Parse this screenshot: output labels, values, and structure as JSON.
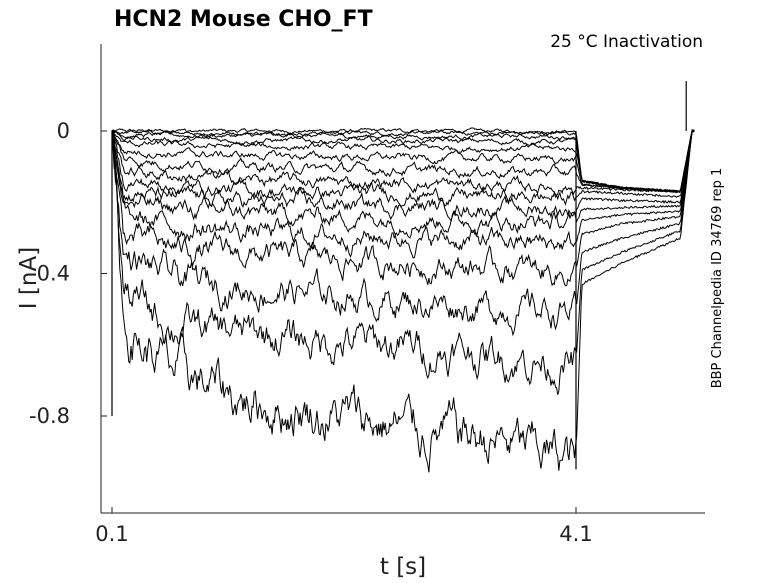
{
  "chart_data": {
    "type": "line",
    "title": "HCN2  Mouse  CHO_FT",
    "subtitle": "25 °C  Inactivation",
    "side_label": "BBP Channelpedia ID 34769 rep 1",
    "xlabel": "t [s]",
    "ylabel": "I [nA]",
    "x_ticks": [
      {
        "value": 0.1,
        "label": "0.1"
      },
      {
        "value": 4.1,
        "label": "4.1"
      }
    ],
    "y_ticks": [
      {
        "value": 0,
        "label": "0"
      },
      {
        "value": -0.4,
        "label": "-0.4"
      },
      {
        "value": -0.8,
        "label": "-0.8"
      }
    ],
    "xlim": [
      0,
      5.2
    ],
    "ylim": [
      -1.1,
      0.25
    ],
    "grid": false,
    "line_color": "#000000",
    "sweep_x": [
      0,
      0.1,
      0.2,
      0.6,
      1.2,
      2.0,
      2.8,
      3.4,
      3.8,
      4.1,
      4.15,
      4.5,
      5.0,
      5.1,
      5.2
    ],
    "series": [
      {
        "values": [
          0.0,
          0.0,
          0.0,
          0.0,
          0.0,
          0.0,
          0.0,
          0.0,
          0.0,
          0.0,
          -0.14,
          -0.16,
          -0.17,
          0.0,
          0.0
        ]
      },
      {
        "values": [
          0.0,
          0.0,
          -0.004,
          -0.005,
          -0.005,
          -0.005,
          -0.006,
          -0.006,
          -0.006,
          -0.006,
          -0.14,
          -0.16,
          -0.17,
          0.0,
          0.0
        ]
      },
      {
        "values": [
          0.0,
          0.0,
          -0.01,
          -0.012,
          -0.013,
          -0.014,
          -0.015,
          -0.015,
          -0.015,
          -0.016,
          -0.14,
          -0.16,
          -0.17,
          0.0,
          0.0
        ]
      },
      {
        "values": [
          0.0,
          0.0,
          -0.02,
          -0.024,
          -0.026,
          -0.027,
          -0.028,
          -0.029,
          -0.03,
          -0.03,
          -0.14,
          -0.16,
          -0.17,
          0.0,
          0.0
        ]
      },
      {
        "values": [
          0.0,
          0.0,
          -0.035,
          -0.04,
          -0.043,
          -0.045,
          -0.047,
          -0.048,
          -0.049,
          -0.05,
          -0.14,
          -0.16,
          -0.17,
          0.0,
          0.0
        ]
      },
      {
        "values": [
          0.0,
          0.0,
          -0.055,
          -0.063,
          -0.068,
          -0.072,
          -0.075,
          -0.077,
          -0.078,
          -0.08,
          -0.15,
          -0.16,
          -0.17,
          0.0,
          0.0
        ]
      },
      {
        "values": [
          0.0,
          0.0,
          -0.08,
          -0.092,
          -0.1,
          -0.106,
          -0.11,
          -0.113,
          -0.115,
          -0.117,
          -0.15,
          -0.16,
          -0.17,
          0.0,
          0.0
        ]
      },
      {
        "values": [
          0.0,
          0.0,
          -0.11,
          -0.125,
          -0.135,
          -0.143,
          -0.149,
          -0.153,
          -0.156,
          -0.158,
          -0.16,
          -0.165,
          -0.17,
          0.0,
          0.0
        ]
      },
      {
        "values": [
          0.0,
          0.0,
          -0.14,
          -0.155,
          -0.165,
          -0.173,
          -0.179,
          -0.183,
          -0.186,
          -0.188,
          -0.17,
          -0.175,
          -0.185,
          0.0,
          0.0
        ]
      },
      {
        "values": [
          0.0,
          0.0,
          -0.17,
          -0.185,
          -0.196,
          -0.205,
          -0.212,
          -0.216,
          -0.219,
          -0.222,
          -0.19,
          -0.195,
          -0.2,
          0.0,
          0.0
        ]
      },
      {
        "values": [
          0.0,
          0.0,
          -0.2,
          -0.215,
          -0.228,
          -0.24,
          -0.248,
          -0.253,
          -0.256,
          -0.26,
          -0.22,
          -0.215,
          -0.21,
          0.0,
          0.0
        ]
      },
      {
        "values": [
          0.0,
          0.0,
          -0.24,
          -0.265,
          -0.28,
          -0.293,
          -0.303,
          -0.31,
          -0.314,
          -0.318,
          -0.25,
          -0.235,
          -0.225,
          0.0,
          0.0
        ]
      },
      {
        "values": [
          0.0,
          0.0,
          -0.29,
          -0.325,
          -0.345,
          -0.362,
          -0.375,
          -0.384,
          -0.39,
          -0.395,
          -0.29,
          -0.26,
          -0.24,
          0.0,
          0.0
        ]
      },
      {
        "values": [
          0.0,
          0.0,
          -0.35,
          -0.41,
          -0.44,
          -0.46,
          -0.48,
          -0.495,
          -0.503,
          -0.51,
          -0.34,
          -0.3,
          -0.26,
          0.0,
          0.0
        ]
      },
      {
        "values": [
          0.0,
          0.0,
          -0.45,
          -0.54,
          -0.57,
          -0.59,
          -0.61,
          -0.63,
          -0.645,
          -0.655,
          -0.39,
          -0.34,
          -0.28,
          0.0,
          0.0
        ]
      },
      {
        "values": [
          0.0,
          0.0,
          -0.55,
          -0.67,
          -0.75,
          -0.8,
          -0.84,
          -0.87,
          -0.9,
          -0.92,
          -0.43,
          -0.37,
          -0.3,
          0.0,
          0.0
        ]
      }
    ]
  }
}
